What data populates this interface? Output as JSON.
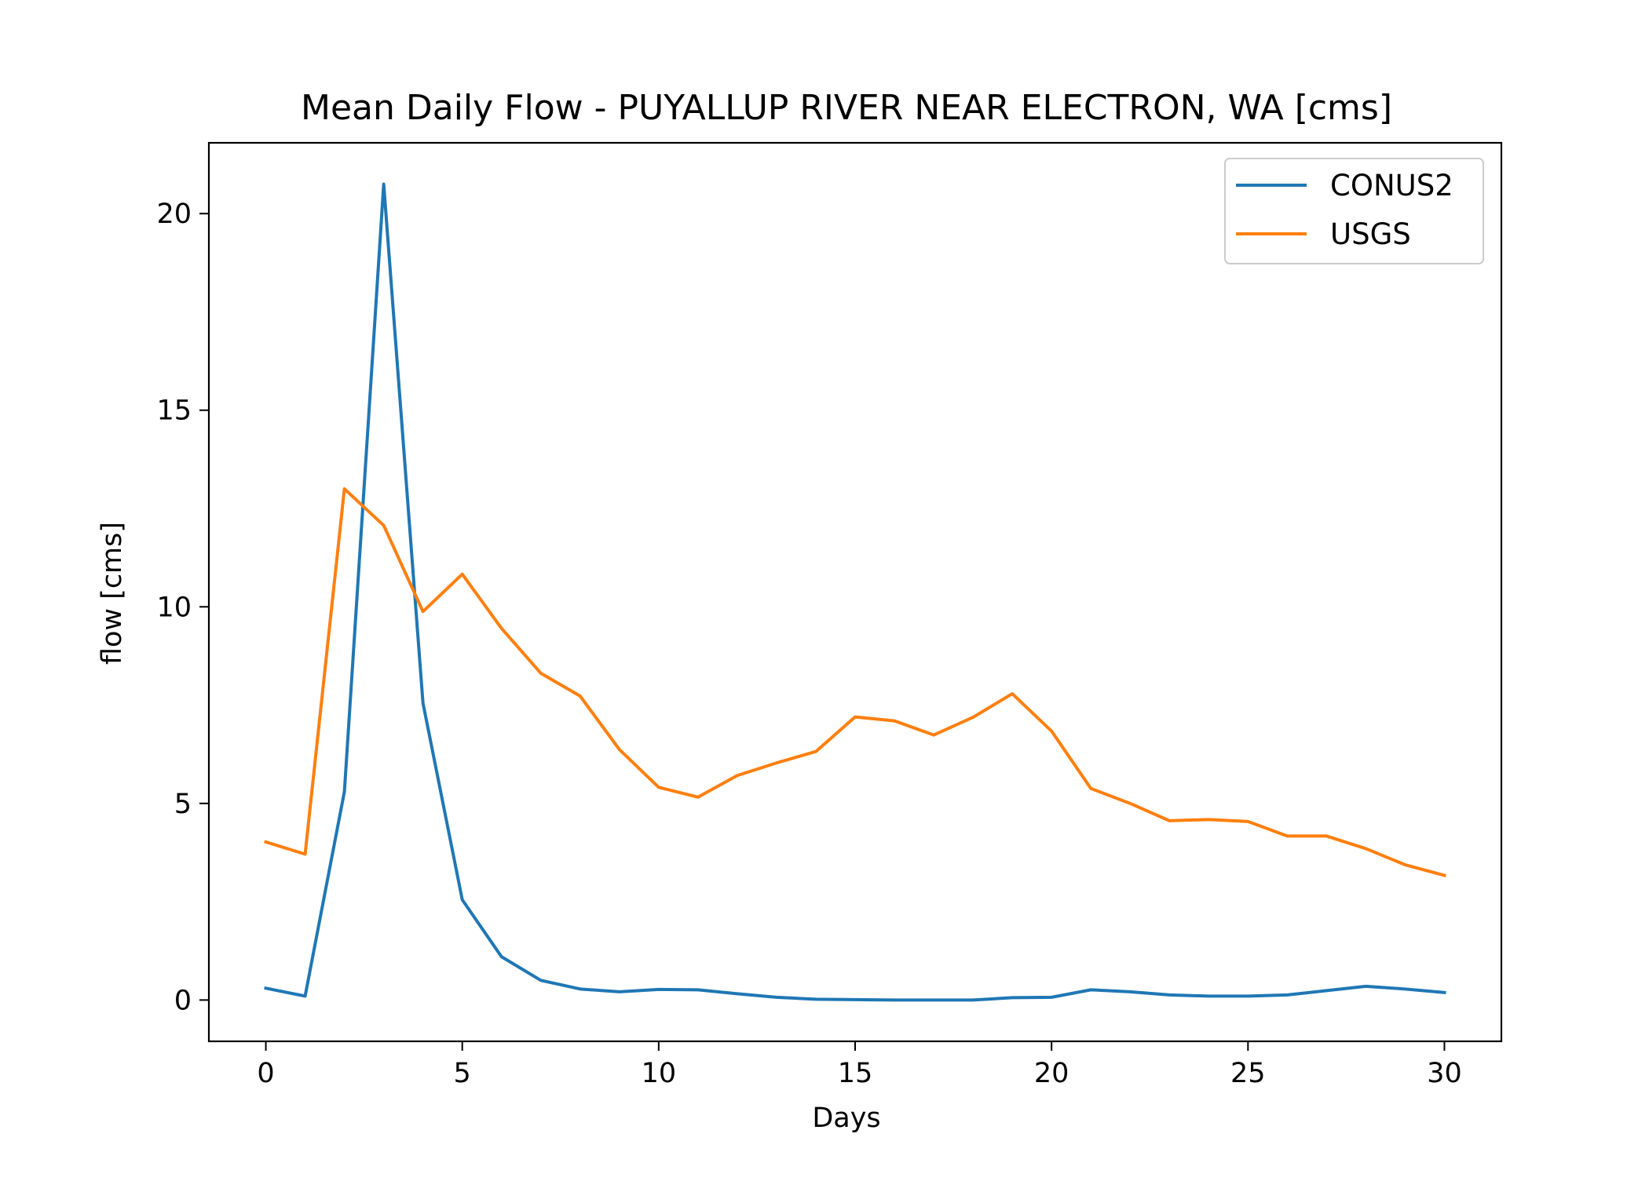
{
  "chart_data": {
    "type": "line",
    "title": "Mean Daily Flow - PUYALLUP RIVER NEAR ELECTRON, WA [cms]",
    "xlabel": "Days",
    "ylabel": "flow [cms]",
    "xlim": [
      -1.45,
      31.45
    ],
    "ylim": [
      -1.05,
      21.8
    ],
    "xticks": [
      0,
      5,
      10,
      15,
      20,
      25,
      30
    ],
    "yticks": [
      0,
      5,
      10,
      15,
      20
    ],
    "grid": false,
    "legend_position": "top-right",
    "x": [
      0,
      1,
      2,
      3,
      4,
      5,
      6,
      7,
      8,
      9,
      10,
      11,
      12,
      13,
      14,
      15,
      16,
      17,
      18,
      19,
      20,
      21,
      22,
      23,
      24,
      25,
      26,
      27,
      28,
      29,
      30
    ],
    "series": [
      {
        "name": "CONUS2",
        "color": "#1f77b4",
        "values": [
          0.3,
          0.1,
          5.3,
          20.75,
          7.55,
          2.55,
          1.1,
          0.5,
          0.28,
          0.21,
          0.27,
          0.26,
          0.16,
          0.07,
          0.02,
          0.01,
          0.0,
          0.0,
          0.0,
          0.06,
          0.07,
          0.26,
          0.21,
          0.13,
          0.1,
          0.1,
          0.13,
          0.24,
          0.35,
          0.28,
          0.19
        ]
      },
      {
        "name": "USGS",
        "color": "#ff7f0e",
        "values": [
          4.02,
          3.71,
          13.0,
          12.07,
          9.88,
          10.83,
          9.45,
          8.31,
          7.73,
          6.37,
          5.41,
          5.16,
          5.71,
          6.03,
          6.32,
          7.2,
          7.1,
          6.74,
          7.19,
          7.79,
          6.84,
          5.38,
          5.0,
          4.56,
          4.59,
          4.54,
          4.17,
          4.17,
          3.85,
          3.44,
          3.17
        ]
      }
    ]
  }
}
